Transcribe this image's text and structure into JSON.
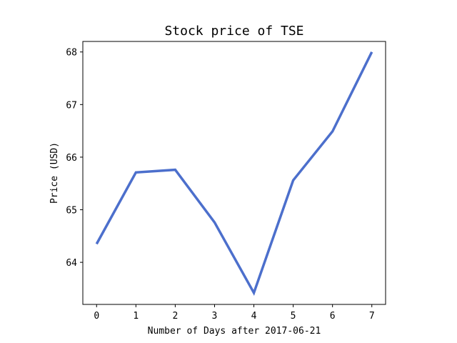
{
  "chart_data": {
    "type": "line",
    "title": "Stock price of TSE",
    "xlabel": "Number of Days after 2017-06-21",
    "ylabel": "Price (USD)",
    "x": [
      0,
      1,
      2,
      3,
      4,
      5,
      6,
      7
    ],
    "x_ticks": [
      "0",
      "1",
      "2",
      "3",
      "4",
      "5",
      "6",
      "7"
    ],
    "y_ticks": [
      64,
      65,
      66,
      67,
      68
    ],
    "xlim": [
      -0.35,
      7.35
    ],
    "ylim": [
      63.2,
      68.2
    ],
    "grid": false,
    "series": [
      {
        "color": "#4c6fcc",
        "values": [
          64.35,
          65.71,
          65.76,
          64.76,
          63.42,
          65.56,
          66.49,
          68.0
        ]
      }
    ]
  }
}
